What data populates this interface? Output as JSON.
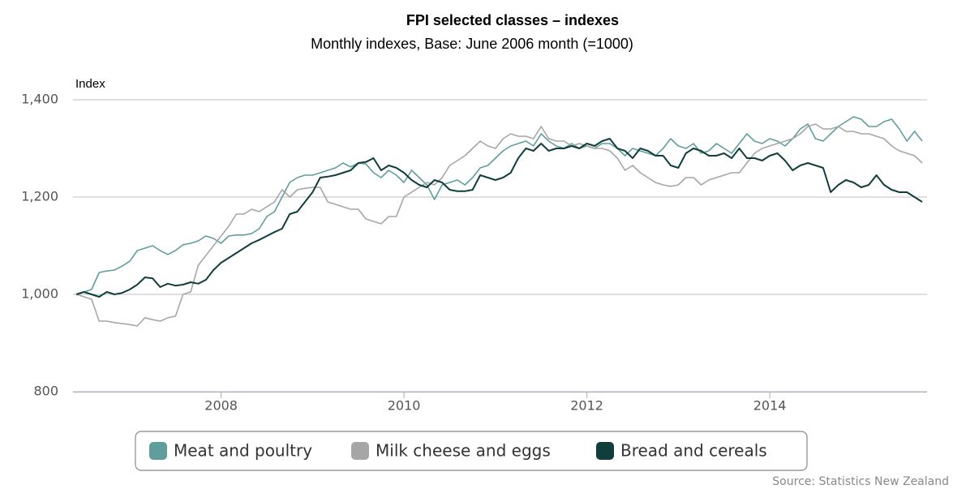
{
  "chart_data": {
    "type": "line",
    "title": "FPI selected classes – indexes",
    "subtitle": "Monthly indexes, Base: June 2006 month (=1000)",
    "y_label": "Index",
    "source": "Source: Statistics New Zealand",
    "xlim": [
      2006.38,
      2015.72
    ],
    "xticks": [
      2008,
      2010,
      2012,
      2014
    ],
    "ylim": [
      800,
      1400
    ],
    "yticks": [
      {
        "value": 800,
        "label": "800"
      },
      {
        "value": 1000,
        "label": "1,000"
      },
      {
        "value": 1200,
        "label": "1,200"
      },
      {
        "value": 1400,
        "label": "1,400"
      }
    ],
    "grid": true,
    "legend": "bottom",
    "x": [
      "2006-06",
      "2006-07",
      "2006-08",
      "2006-09",
      "2006-10",
      "2006-11",
      "2006-12",
      "2007-01",
      "2007-02",
      "2007-03",
      "2007-04",
      "2007-05",
      "2007-06",
      "2007-07",
      "2007-08",
      "2007-09",
      "2007-10",
      "2007-11",
      "2007-12",
      "2008-01",
      "2008-02",
      "2008-03",
      "2008-04",
      "2008-05",
      "2008-06",
      "2008-07",
      "2008-08",
      "2008-09",
      "2008-10",
      "2008-11",
      "2008-12",
      "2009-01",
      "2009-02",
      "2009-03",
      "2009-04",
      "2009-05",
      "2009-06",
      "2009-07",
      "2009-08",
      "2009-09",
      "2009-10",
      "2009-11",
      "2009-12",
      "2010-01",
      "2010-02",
      "2010-03",
      "2010-04",
      "2010-05",
      "2010-06",
      "2010-07",
      "2010-08",
      "2010-09",
      "2010-10",
      "2010-11",
      "2010-12",
      "2011-01",
      "2011-02",
      "2011-03",
      "2011-04",
      "2011-05",
      "2011-06",
      "2011-07",
      "2011-08",
      "2011-09",
      "2011-10",
      "2011-11",
      "2011-12",
      "2012-01",
      "2012-02",
      "2012-03",
      "2012-04",
      "2012-05",
      "2012-06",
      "2012-07",
      "2012-08",
      "2012-09",
      "2012-10",
      "2012-11",
      "2012-12",
      "2013-01",
      "2013-02",
      "2013-03",
      "2013-04",
      "2013-05",
      "2013-06",
      "2013-07",
      "2013-08",
      "2013-09",
      "2013-10",
      "2013-11",
      "2013-12",
      "2014-01",
      "2014-02",
      "2014-03",
      "2014-04",
      "2014-05",
      "2014-06",
      "2014-07",
      "2014-08",
      "2014-09",
      "2014-10",
      "2014-11",
      "2014-12",
      "2015-01",
      "2015-02",
      "2015-03",
      "2015-04",
      "2015-05",
      "2015-06",
      "2015-07",
      "2015-08",
      "2015-09"
    ],
    "series": [
      {
        "name": "Meat and poultry",
        "color": "#5f9e9c",
        "values": [
          1000,
          1005,
          1010,
          1045,
          1048,
          1050,
          1058,
          1068,
          1090,
          1095,
          1100,
          1090,
          1082,
          1090,
          1102,
          1105,
          1110,
          1120,
          1115,
          1105,
          1120,
          1122,
          1122,
          1125,
          1135,
          1160,
          1170,
          1200,
          1230,
          1240,
          1245,
          1245,
          1250,
          1255,
          1260,
          1270,
          1262,
          1270,
          1268,
          1250,
          1240,
          1255,
          1245,
          1230,
          1255,
          1240,
          1225,
          1195,
          1225,
          1230,
          1235,
          1225,
          1240,
          1260,
          1265,
          1280,
          1295,
          1305,
          1310,
          1315,
          1305,
          1330,
          1315,
          1305,
          1300,
          1310,
          1300,
          1305,
          1300,
          1310,
          1310,
          1300,
          1285,
          1300,
          1295,
          1290,
          1285,
          1300,
          1320,
          1305,
          1300,
          1310,
          1290,
          1295,
          1310,
          1300,
          1290,
          1310,
          1330,
          1315,
          1310,
          1320,
          1315,
          1305,
          1320,
          1340,
          1350,
          1320,
          1315,
          1330,
          1345,
          1355,
          1365,
          1360,
          1345,
          1345,
          1355,
          1360,
          1340,
          1315,
          1335,
          1315
        ]
      },
      {
        "name": "Milk cheese and eggs",
        "color": "#a6a6a6",
        "values": [
          1000,
          995,
          990,
          945,
          945,
          942,
          940,
          938,
          935,
          952,
          948,
          945,
          952,
          955,
          1000,
          1005,
          1060,
          1080,
          1100,
          1120,
          1140,
          1165,
          1165,
          1175,
          1170,
          1180,
          1190,
          1215,
          1200,
          1215,
          1218,
          1220,
          1220,
          1190,
          1185,
          1180,
          1175,
          1175,
          1155,
          1150,
          1145,
          1160,
          1160,
          1200,
          1210,
          1220,
          1230,
          1225,
          1240,
          1265,
          1275,
          1285,
          1300,
          1315,
          1305,
          1300,
          1320,
          1330,
          1325,
          1325,
          1320,
          1345,
          1320,
          1315,
          1315,
          1305,
          1310,
          1305,
          1300,
          1300,
          1295,
          1280,
          1255,
          1265,
          1250,
          1240,
          1230,
          1225,
          1222,
          1225,
          1240,
          1240,
          1225,
          1235,
          1240,
          1245,
          1250,
          1250,
          1270,
          1290,
          1300,
          1305,
          1310,
          1315,
          1320,
          1330,
          1345,
          1350,
          1340,
          1340,
          1345,
          1335,
          1335,
          1330,
          1330,
          1325,
          1320,
          1305,
          1295,
          1290,
          1285,
          1270
        ]
      },
      {
        "name": "Bread and cereals",
        "color": "#0f3e3c",
        "values": [
          1000,
          1005,
          1000,
          995,
          1005,
          1000,
          1003,
          1010,
          1020,
          1035,
          1033,
          1015,
          1022,
          1018,
          1020,
          1025,
          1022,
          1030,
          1050,
          1065,
          1075,
          1085,
          1095,
          1105,
          1112,
          1120,
          1128,
          1135,
          1165,
          1170,
          1190,
          1210,
          1240,
          1242,
          1245,
          1250,
          1255,
          1270,
          1272,
          1280,
          1255,
          1265,
          1260,
          1250,
          1235,
          1225,
          1220,
          1235,
          1230,
          1215,
          1212,
          1212,
          1215,
          1245,
          1240,
          1235,
          1240,
          1250,
          1280,
          1300,
          1295,
          1310,
          1295,
          1300,
          1300,
          1305,
          1300,
          1310,
          1305,
          1315,
          1320,
          1300,
          1295,
          1280,
          1300,
          1295,
          1285,
          1285,
          1265,
          1260,
          1290,
          1300,
          1295,
          1285,
          1285,
          1290,
          1280,
          1300,
          1280,
          1280,
          1275,
          1285,
          1290,
          1275,
          1255,
          1265,
          1270,
          1265,
          1260,
          1210,
          1225,
          1235,
          1230,
          1220,
          1225,
          1245,
          1225,
          1215,
          1210,
          1210,
          1200,
          1190
        ]
      }
    ]
  }
}
